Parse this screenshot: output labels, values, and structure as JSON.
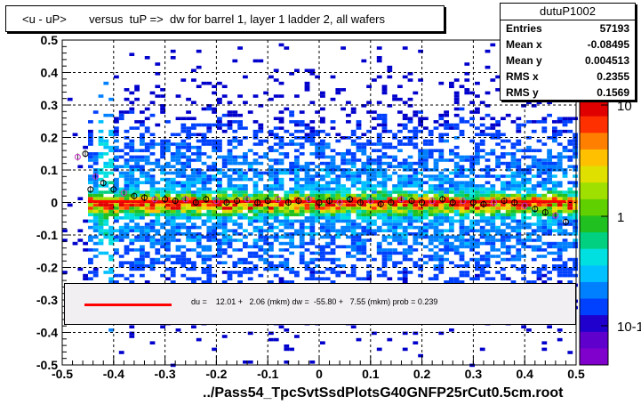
{
  "title": "<u - uP>       versus  tuP =>  dw for barrel 1, layer 1 ladder 2, all wafers",
  "file_label": "../Pass54_TpcSvtSsdPlotsG40GNFP25rCut0.5cm.root",
  "stats": {
    "name": "dutuP1002",
    "rows": [
      {
        "label": "Entries",
        "value": "57193"
      },
      {
        "label": "Mean x",
        "value": "-0.08495"
      },
      {
        "label": "Mean y",
        "value": "0.004513"
      },
      {
        "label": "RMS x",
        "value": "0.2355"
      },
      {
        "label": "RMS y",
        "value": "0.1569"
      }
    ]
  },
  "legend": {
    "text": "du =    12.01 +   2.06 (mkm) dw =  -55.80 +   7.55 (mkm) prob = 0.239",
    "line_color": "#ff0000"
  },
  "chart_data": {
    "type": "heatmap",
    "xlim": [
      -0.5,
      0.5
    ],
    "ylim": [
      -0.5,
      0.5
    ],
    "x_ticks": [
      "-0.5",
      "-0.4",
      "-0.3",
      "-0.2",
      "-0.1",
      "0",
      "0.1",
      "0.2",
      "0.3",
      "0.4",
      "0.5"
    ],
    "y_ticks": [
      "-0.5",
      "-0.4",
      "-0.3",
      "-0.2",
      "-0.1",
      "0",
      "0.1",
      "0.2",
      "0.3",
      "0.4",
      "0.5"
    ],
    "z_scale": "log",
    "z_ticks": [
      "10",
      "1",
      "10-1"
    ],
    "grid": true,
    "fit_line": {
      "x": [
        -0.45,
        0.48
      ],
      "y": [
        0.003,
        0.003
      ],
      "color": "#ff0000"
    },
    "profile_points": {
      "x": [
        -0.47,
        -0.455,
        -0.445,
        -0.435,
        -0.42,
        -0.4,
        -0.38,
        -0.36,
        -0.34,
        -0.32,
        -0.3,
        -0.28,
        -0.26,
        -0.24,
        -0.22,
        -0.2,
        -0.18,
        -0.16,
        -0.14,
        -0.12,
        -0.1,
        -0.08,
        -0.06,
        -0.04,
        -0.02,
        0.0,
        0.02,
        0.04,
        0.06,
        0.08,
        0.1,
        0.12,
        0.14,
        0.16,
        0.18,
        0.2,
        0.22,
        0.24,
        0.26,
        0.28,
        0.3,
        0.32,
        0.34,
        0.36,
        0.38,
        0.4,
        0.42,
        0.44,
        0.46,
        0.48
      ],
      "y": [
        0.14,
        0.15,
        0.04,
        0.08,
        0.06,
        0.04,
        0.03,
        0.02,
        0.015,
        0.01,
        0.01,
        0.005,
        0.01,
        0.0,
        0.01,
        0.005,
        0.0,
        0.005,
        0.01,
        0.0,
        0.005,
        0.01,
        0.0,
        0.005,
        0.01,
        0.0,
        0.005,
        0.0,
        0.01,
        0.0,
        0.005,
        -0.005,
        0.0,
        0.01,
        0.005,
        0.0,
        0.005,
        0.01,
        0.0,
        0.005,
        0.0,
        -0.005,
        0.0,
        0.005,
        0.0,
        -0.01,
        -0.02,
        -0.03,
        -0.04,
        -0.06
      ]
    }
  }
}
